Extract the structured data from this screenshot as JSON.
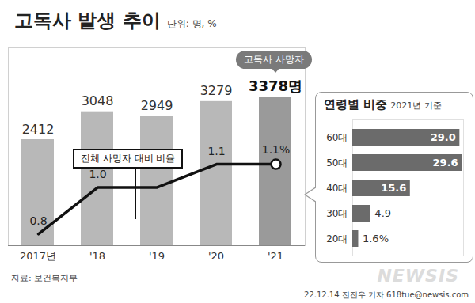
{
  "chart_data": [
    {
      "type": "bar",
      "title": "고독사 발생 추이",
      "subtitle": "단위: 명, %",
      "source": "자료: 보건복지부",
      "credit": "22.12.14 전진우 기자 618tue@newsis.com",
      "watermark": "NEWSIS",
      "categories": [
        "2017년",
        "'18",
        "'19",
        "'20",
        "'21"
      ],
      "series": [
        {
          "name": "고독사 사망자",
          "type": "bar",
          "colors": [
            "#b8b8b8",
            "#b8b8b8",
            "#b8b8b8",
            "#b8b8b8",
            "#9a9a9a"
          ],
          "values": [
            2412,
            3048,
            2949,
            3279,
            3378
          ],
          "value_labels": [
            "2412",
            "3048",
            "2949",
            "3279",
            "3378명"
          ]
        },
        {
          "name": "전체 사망자 대비 비율",
          "type": "line",
          "axis": "y2",
          "color": "#111111",
          "values": [
            0.8,
            1.0,
            1.0,
            1.1,
            1.1
          ],
          "value_labels": [
            "0.8",
            "1.0",
            null,
            "1.1",
            "1.1%"
          ]
        }
      ],
      "ylim": [
        0,
        4500
      ],
      "yticks": [],
      "y2lim": [
        0.75,
        1.6
      ],
      "y2ticks": [],
      "data_labels": true,
      "tick_labels": "x"
    },
    {
      "type": "bar",
      "title": "연령별 비중",
      "subtitle": "2021년 기준",
      "orientation": "horizontal",
      "categories": [
        "60대",
        "50대",
        "40대",
        "30대",
        "20대"
      ],
      "values": [
        29.0,
        29.6,
        15.6,
        4.9,
        1.6
      ],
      "value_labels": [
        "29.0",
        "29.6",
        "15.6",
        "4.9",
        "1.6%"
      ],
      "color": "#6b6b6b",
      "xlim": [
        0,
        30
      ],
      "xticks": [],
      "data_labels": true,
      "tick_labels": "y"
    }
  ]
}
